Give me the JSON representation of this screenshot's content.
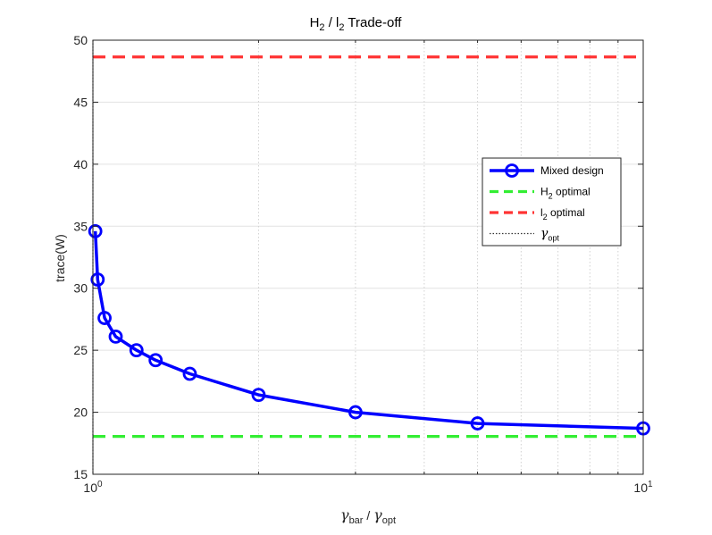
{
  "chart_data": {
    "type": "line",
    "title": {
      "base1": "H",
      "sub1": "2",
      "mid": " / l",
      "sub2": "2",
      "rest": " Trade-off"
    },
    "xlabel": {
      "g1": "γ",
      "sub1": "bar",
      "mid": " / ",
      "g2": "γ",
      "sub2": "opt"
    },
    "ylabel": "trace(W)",
    "xscale": "log",
    "xlim": [
      1,
      10
    ],
    "ylim": [
      15,
      50
    ],
    "yticks": [
      "15",
      "20",
      "25",
      "30",
      "35",
      "40",
      "45",
      "50"
    ],
    "xticks": [
      {
        "base": "10",
        "exp": "0"
      },
      {
        "base": "10",
        "exp": "1"
      }
    ],
    "grid": true,
    "legend_position": "right",
    "series": [
      {
        "name": "Mixed design",
        "color": "#0000ff",
        "marker": "circle",
        "x": [
          1.01,
          1.02,
          1.05,
          1.1,
          1.2,
          1.3,
          1.5,
          2.0,
          3.0,
          5.0,
          10.0
        ],
        "y": [
          34.6,
          30.7,
          27.6,
          26.1,
          25.0,
          24.2,
          23.1,
          21.4,
          20.0,
          19.1,
          18.7
        ]
      },
      {
        "name": "H2 optimal",
        "color": "#33ee33",
        "style": "dashed",
        "y": 18.05
      },
      {
        "name": "l2 optimal",
        "color": "#ff3333",
        "style": "dashed",
        "y": 48.65
      },
      {
        "name": "gamma_opt",
        "color": "#333333",
        "style": "dotted",
        "x": 1
      }
    ],
    "legend": [
      {
        "text": "Mixed design"
      },
      {
        "base": "H",
        "sub": "2",
        "rest": " optimal"
      },
      {
        "base": "l",
        "sub": "2",
        "rest": " optimal"
      },
      {
        "g": "γ",
        "sub": "opt"
      }
    ]
  }
}
